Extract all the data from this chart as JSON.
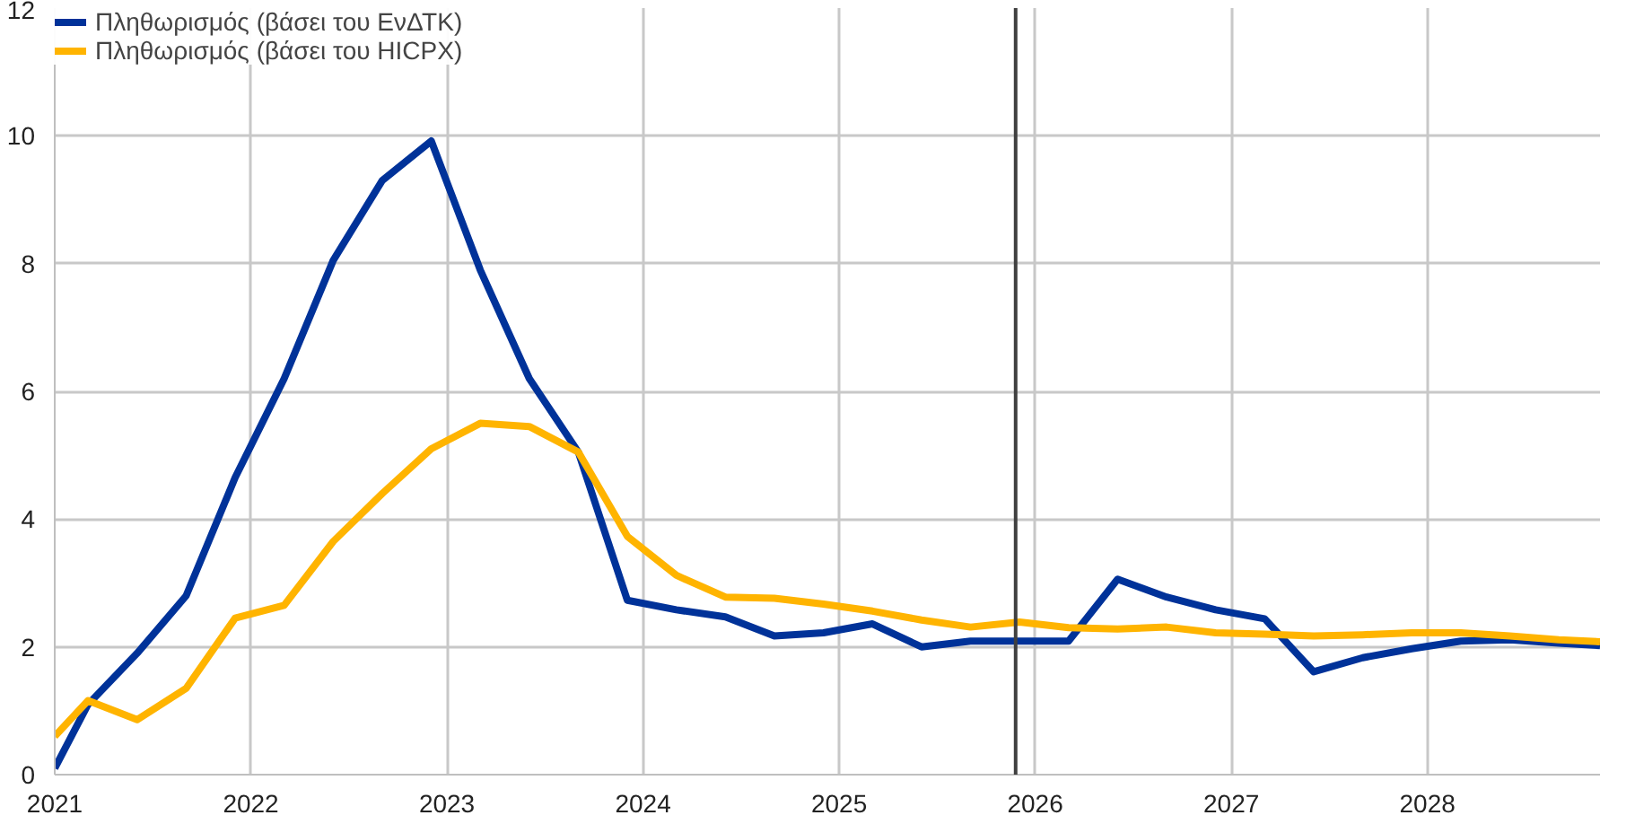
{
  "chart_data": {
    "type": "line",
    "x": [
      2021.0,
      2021.17,
      2021.42,
      2021.67,
      2021.92,
      2022.17,
      2022.42,
      2022.67,
      2022.92,
      2023.17,
      2023.42,
      2023.67,
      2023.92,
      2024.17,
      2024.42,
      2024.67,
      2024.92,
      2025.17,
      2025.42,
      2025.67,
      2025.92,
      2026.17,
      2026.42,
      2026.67,
      2026.92,
      2027.17,
      2027.42,
      2027.67,
      2027.92,
      2028.17,
      2028.42,
      2028.67,
      2028.88
    ],
    "series": [
      {
        "name": "Πληθωρισμός (βάσει του ΕνΔΤΚ)",
        "color": "#003299",
        "values": [
          0.1,
          1.1,
          1.9,
          2.8,
          4.65,
          6.2,
          8.05,
          9.3,
          9.92,
          7.9,
          6.2,
          5.05,
          2.73,
          2.58,
          2.47,
          2.17,
          2.22,
          2.36,
          2.0,
          2.09,
          2.09,
          2.09,
          3.06,
          2.78,
          2.58,
          2.44,
          1.61,
          1.83,
          1.97,
          2.09,
          2.11,
          2.06,
          2.02
        ]
      },
      {
        "name": "Πληθωρισμός (βάσει του HICPX)",
        "color": "#ffb400",
        "values": [
          0.6,
          1.16,
          0.86,
          1.35,
          2.45,
          2.65,
          3.65,
          4.4,
          5.1,
          5.5,
          5.45,
          5.05,
          3.73,
          3.12,
          2.78,
          2.76,
          2.67,
          2.56,
          2.42,
          2.31,
          2.39,
          2.3,
          2.28,
          2.31,
          2.22,
          2.2,
          2.17,
          2.19,
          2.22,
          2.22,
          2.17,
          2.11,
          2.08
        ]
      }
    ],
    "xlim": [
      2021,
      2028.88
    ],
    "xticks": [
      2021,
      2022,
      2023,
      2024,
      2025,
      2026,
      2027,
      2028
    ],
    "ylim": [
      0,
      12
    ],
    "yticks": [
      0,
      2,
      4,
      6,
      8,
      10,
      12
    ],
    "ref_lines": [
      {
        "axis": "x",
        "value": 2025.9,
        "color": "#404040"
      }
    ],
    "grid": true,
    "legend": "top left",
    "marker": "none",
    "line_style": "solid"
  }
}
